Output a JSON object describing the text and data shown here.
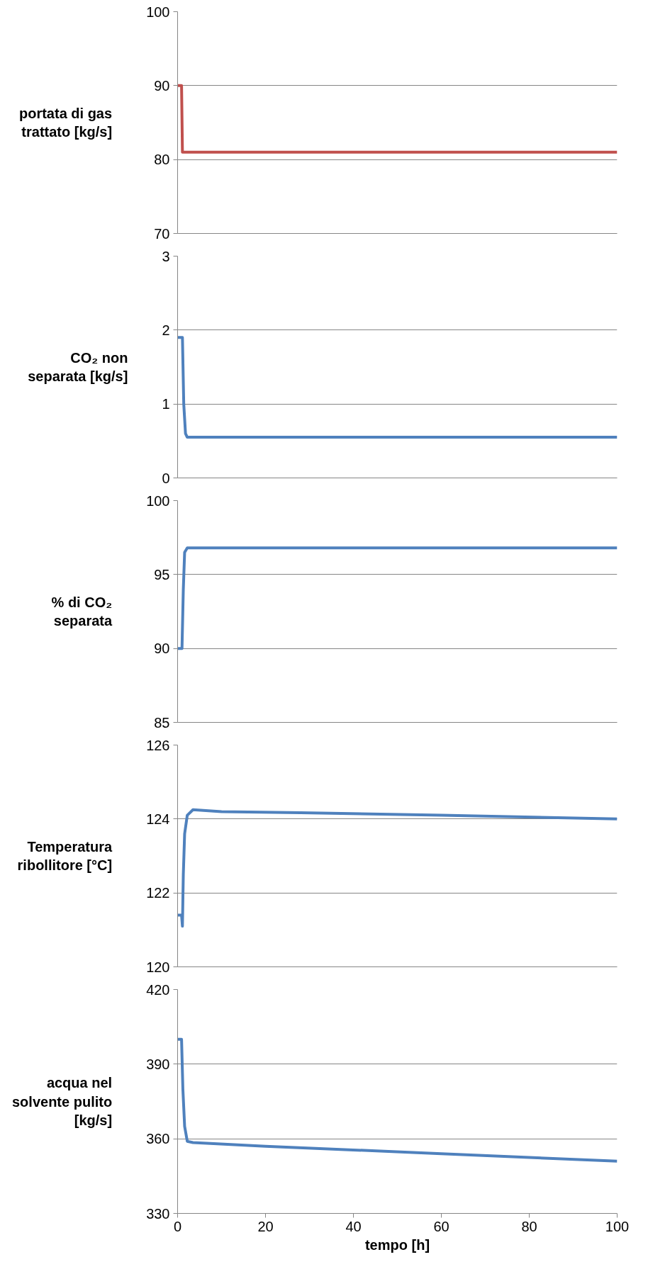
{
  "chart_data": [
    {
      "type": "line",
      "ylabel": "portata di gas\ntrattato [kg/s]",
      "x": [
        0,
        0.9,
        1.1,
        100
      ],
      "series": [
        {
          "color": "#c0504d",
          "values": [
            90,
            90,
            81,
            81
          ]
        }
      ],
      "xlim": [
        0,
        100
      ],
      "ylim": [
        70,
        100
      ],
      "yticks": [
        70,
        80,
        90,
        100
      ],
      "grid": "y",
      "tick_labels": "y",
      "marker": "none"
    },
    {
      "type": "line",
      "ylabel": "CO₂ non\nseparata [kg/s]",
      "x": [
        0,
        1.1,
        1.4,
        1.8,
        2.2,
        100
      ],
      "series": [
        {
          "color": "#4f81bd",
          "values": [
            1.9,
            1.9,
            1.0,
            0.6,
            0.55,
            0.55
          ]
        }
      ],
      "xlim": [
        0,
        100
      ],
      "ylim": [
        0,
        3
      ],
      "yticks": [
        0,
        1,
        2,
        3
      ],
      "grid": "y",
      "tick_labels": "y",
      "marker": "none"
    },
    {
      "type": "line",
      "ylabel": "% di CO₂\nseparata",
      "x": [
        0,
        1.0,
        1.3,
        1.6,
        2.2,
        100
      ],
      "series": [
        {
          "color": "#4f81bd",
          "values": [
            90,
            90,
            94,
            96.5,
            96.8,
            96.8
          ]
        }
      ],
      "xlim": [
        0,
        100
      ],
      "ylim": [
        85,
        100
      ],
      "yticks": [
        85,
        90,
        95,
        100
      ],
      "grid": "y",
      "tick_labels": "y",
      "marker": "none"
    },
    {
      "type": "line",
      "ylabel": "Temperatura\nribollitore [°C]",
      "x": [
        0,
        0.9,
        1.1,
        1.3,
        1.6,
        2.2,
        3.5,
        10,
        28,
        60,
        100
      ],
      "series": [
        {
          "color": "#4f81bd",
          "values": [
            121.4,
            121.4,
            121.1,
            122.5,
            123.6,
            124.1,
            124.25,
            124.2,
            124.17,
            124.1,
            124.0
          ]
        }
      ],
      "xlim": [
        0,
        100
      ],
      "ylim": [
        120,
        126
      ],
      "yticks": [
        120,
        122,
        124,
        126
      ],
      "grid": "y",
      "tick_labels": "y",
      "marker": "none"
    },
    {
      "type": "line",
      "ylabel": "acqua nel\nsolvente pulito\n[kg/s]",
      "xlabel": "tempo [h]",
      "x": [
        0,
        0.9,
        1.2,
        1.6,
        2.2,
        3.5,
        20,
        60,
        100
      ],
      "series": [
        {
          "color": "#4f81bd",
          "values": [
            400,
            400,
            380,
            365,
            359,
            358.5,
            357,
            354,
            351
          ]
        }
      ],
      "xlim": [
        0,
        100
      ],
      "xticks": [
        0,
        20,
        40,
        60,
        80,
        100
      ],
      "ylim": [
        330,
        420
      ],
      "yticks": [
        330,
        360,
        390,
        420
      ],
      "grid": "y",
      "marker": "none"
    }
  ]
}
